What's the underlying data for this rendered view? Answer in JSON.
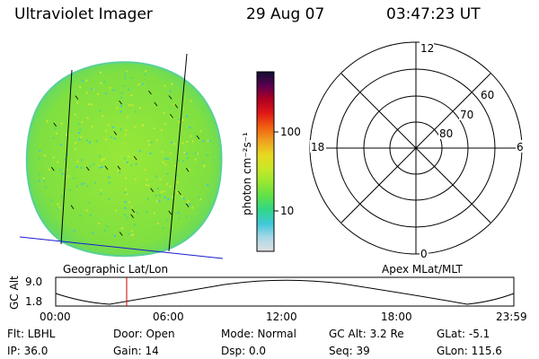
{
  "header": {
    "instrument": "Ultraviolet Imager",
    "date": "29 Aug 07",
    "time": "03:47:23 UT"
  },
  "colorbar": {
    "unit_label": "photon cm⁻²s⁻¹",
    "ticks": [
      {
        "label": "100",
        "value": 100
      },
      {
        "label": "10",
        "value": 10
      }
    ],
    "scale": "log",
    "colors": [
      "#101030",
      "#5a0050",
      "#b00020",
      "#e01818",
      "#f06010",
      "#f0a020",
      "#e8d820",
      "#c8e828",
      "#98e830",
      "#60e048",
      "#30d888",
      "#40c8d8",
      "#a8d8e8",
      "#e0e0e0"
    ]
  },
  "image_panel": {
    "label": "Geographic Lat/Lon",
    "fill_color": "#88e040"
  },
  "polar_panel": {
    "label": "Apex MLat/MLT",
    "mlt_labels": {
      "top": "12",
      "left": "18",
      "right": "6",
      "bottom": "0"
    },
    "mlat_labels": [
      "60",
      "70",
      "80"
    ]
  },
  "altitude_plot": {
    "ylabel": "GC Alt",
    "yticks": [
      "9.0",
      "1.8"
    ],
    "xticks": [
      "00:00",
      "06:00",
      "12:00",
      "18:00",
      "23:59"
    ],
    "marker_color": "#cc0000"
  },
  "info": {
    "filter": "Flt: LBHL",
    "ip": "IP: 36.0",
    "door": "Door: Open",
    "gain": "Gain: 14",
    "mode": "Mode: Normal",
    "dsp": "Dsp:    0.0",
    "gc_alt": "GC Alt: 3.2 Re",
    "seq": "Seq: 39",
    "glat": "GLat:   -5.1",
    "glon": "GLon: 115.6"
  }
}
